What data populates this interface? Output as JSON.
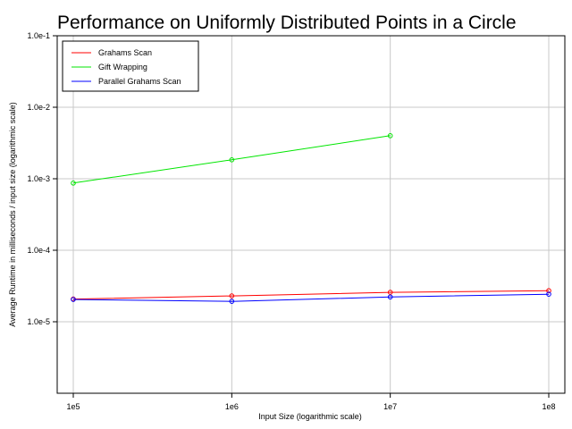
{
  "chart_data": {
    "type": "line",
    "title": "Performance on Uniformly Distributed Points in a Circle",
    "xlabel": "Input Size (logarithmic scale)",
    "ylabel": "Average Runtime in milliseconds / input size (logarithmic scale)",
    "x_scale": "log",
    "y_scale": "log",
    "x_ticks": [
      100000,
      1000000,
      10000000,
      100000000
    ],
    "x_tick_labels": [
      "1e5",
      "1e6",
      "1e7",
      "1e8"
    ],
    "y_ticks": [
      0.1,
      0.01,
      0.001,
      0.0001,
      1e-05
    ],
    "y_tick_labels": [
      "1.0e-1",
      "1.0e-2",
      "1.0e-3",
      "1.0e-4",
      "1.0e-5"
    ],
    "xlim": [
      100000,
      100000000
    ],
    "ylim": [
      1e-06,
      0.1
    ],
    "grid": true,
    "legend_position": "top-left",
    "series": [
      {
        "name": "Grahams Scan",
        "color": "#ff0000",
        "x": [
          100000,
          1000000,
          10000000,
          100000000
        ],
        "y": [
          2.08e-05,
          2.3e-05,
          2.58e-05,
          2.72e-05
        ]
      },
      {
        "name": "Gift Wrapping",
        "color": "#00e600",
        "x": [
          100000,
          1000000,
          10000000
        ],
        "y": [
          0.00087,
          0.00184,
          0.004
        ]
      },
      {
        "name": "Parallel Grahams Scan",
        "color": "#0000ff",
        "x": [
          100000,
          1000000,
          10000000,
          100000000
        ],
        "y": [
          2.05e-05,
          1.93e-05,
          2.22e-05,
          2.43e-05
        ]
      }
    ]
  }
}
